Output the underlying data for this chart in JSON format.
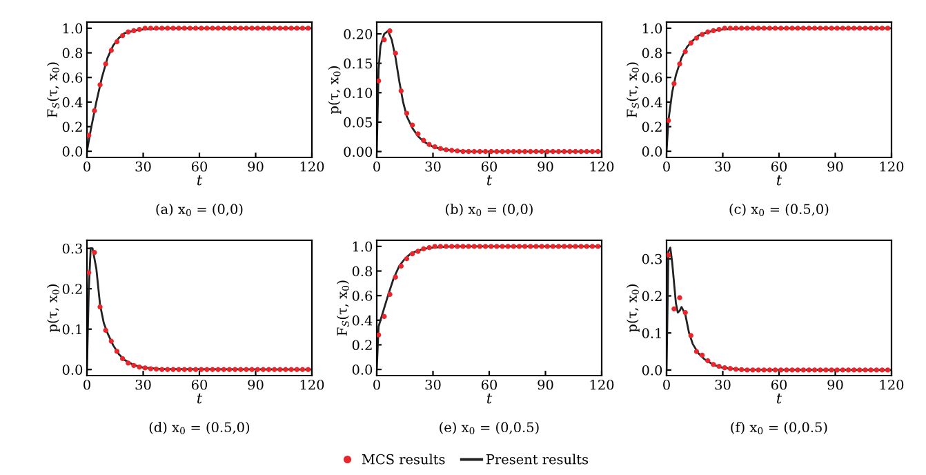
{
  "chart_data": [
    {
      "type": "line",
      "title": "(a) x$_{0}$ = (0,0)",
      "xlabel": "t",
      "ylabel": "F$_{S}$(τ, x$_{0}$)",
      "xlim": [
        0,
        120
      ],
      "xticks": [
        0,
        30,
        60,
        90,
        120
      ],
      "ylim": [
        -0.05,
        1.05
      ],
      "yticks": [
        {
          "value": 0,
          "label": "0.0"
        },
        {
          "value": 0.2,
          "label": "0.2"
        },
        {
          "value": 0.4,
          "label": "0.4"
        },
        {
          "value": 0.6,
          "label": "0.6"
        },
        {
          "value": 0.8,
          "label": "0.8"
        },
        {
          "value": 1,
          "label": "1.0"
        }
      ],
      "legend": "bottom",
      "series": [
        {
          "name": "MCS results",
          "type": "scatter",
          "marker": "circle",
          "color": "#e8262b",
          "x": [
            1,
            4,
            7,
            10,
            13,
            16,
            19,
            22,
            25,
            28,
            31,
            34,
            37,
            40,
            43,
            46,
            49,
            52,
            55,
            58,
            61,
            64,
            67,
            70,
            73,
            76,
            79,
            82,
            85,
            88,
            91,
            94,
            97,
            100,
            103,
            106,
            109,
            112,
            115,
            118
          ],
          "values": [
            0.13,
            0.33,
            0.54,
            0.71,
            0.82,
            0.89,
            0.94,
            0.97,
            0.98,
            0.99,
            1,
            1,
            1,
            1,
            1,
            1,
            1,
            1,
            1,
            1,
            1,
            1,
            1,
            1,
            1,
            1,
            1,
            1,
            1,
            1,
            1,
            1,
            1,
            1,
            1,
            1,
            1,
            1,
            1,
            1
          ]
        },
        {
          "name": "Present results",
          "color": "#222222",
          "x": [
            0,
            2,
            5,
            8,
            11,
            14,
            17,
            20,
            25,
            30,
            40,
            120
          ],
          "values": [
            0,
            0.17,
            0.4,
            0.6,
            0.76,
            0.86,
            0.92,
            0.96,
            0.98,
            0.99,
            1,
            1
          ]
        }
      ]
    },
    {
      "type": "line",
      "title": "(b) x$_{0}$ = (0,0)",
      "xlabel": "t",
      "ylabel": "p(τ, x$_{0}$)",
      "xlim": [
        0,
        120
      ],
      "xticks": [
        0,
        30,
        60,
        90,
        120
      ],
      "ylim": [
        -0.01,
        0.22
      ],
      "yticks": [
        {
          "value": 0,
          "label": "0.00"
        },
        {
          "value": 0.05,
          "label": "0.05"
        },
        {
          "value": 0.1,
          "label": "0.10"
        },
        {
          "value": 0.15,
          "label": "0.15"
        },
        {
          "value": 0.2,
          "label": "0.20"
        }
      ],
      "series": [
        {
          "type": "scatter",
          "marker": "circle",
          "color": "#e8262b",
          "x": [
            1,
            4,
            7,
            10,
            13,
            16,
            19,
            22,
            25,
            28,
            31,
            34,
            37,
            40,
            43,
            46,
            49,
            52,
            55,
            58,
            61,
            64,
            67,
            70,
            73,
            76,
            79,
            82,
            85,
            88,
            91,
            94,
            97,
            100,
            103,
            106,
            109,
            112,
            115,
            118
          ],
          "values": [
            0.12,
            0.19,
            0.205,
            0.167,
            0.103,
            0.065,
            0.045,
            0.03,
            0.019,
            0.012,
            0.008,
            0.005,
            0.003,
            0.002,
            0.001,
            0,
            0,
            0,
            0,
            0,
            0,
            0,
            0,
            0,
            0,
            0,
            0,
            0,
            0,
            0,
            0,
            0,
            0,
            0,
            0,
            0,
            0,
            0,
            0,
            0
          ]
        },
        {
          "color": "#222222",
          "x": [
            0,
            1,
            2,
            4,
            6,
            8,
            10,
            12,
            14,
            16,
            19,
            22,
            25,
            30,
            35,
            40,
            50,
            120
          ],
          "values": [
            0,
            0.14,
            0.18,
            0.2,
            0.205,
            0.19,
            0.16,
            0.12,
            0.085,
            0.06,
            0.04,
            0.026,
            0.017,
            0.008,
            0.004,
            0.002,
            0,
            0
          ]
        }
      ]
    },
    {
      "type": "line",
      "title": "(c) x$_{0}$ = (0.5,0)",
      "xlabel": "t",
      "ylabel": "F$_{S}$(τ, x$_{0}$)",
      "xlim": [
        0,
        120
      ],
      "xticks": [
        0,
        30,
        60,
        90,
        120
      ],
      "ylim": [
        -0.05,
        1.05
      ],
      "yticks": [
        {
          "value": 0,
          "label": "0.0"
        },
        {
          "value": 0.2,
          "label": "0.2"
        },
        {
          "value": 0.4,
          "label": "0.4"
        },
        {
          "value": 0.6,
          "label": "0.6"
        },
        {
          "value": 0.8,
          "label": "0.8"
        },
        {
          "value": 1,
          "label": "1.0"
        }
      ],
      "series": [
        {
          "type": "scatter",
          "marker": "circle",
          "color": "#e8262b",
          "x": [
            1,
            4,
            7,
            10,
            13,
            16,
            19,
            22,
            25,
            28,
            31,
            34,
            37,
            40,
            43,
            46,
            49,
            52,
            55,
            58,
            61,
            64,
            67,
            70,
            73,
            76,
            79,
            82,
            85,
            88,
            91,
            94,
            97,
            100,
            103,
            106,
            109,
            112,
            115,
            118
          ],
          "values": [
            0.25,
            0.55,
            0.71,
            0.81,
            0.88,
            0.92,
            0.95,
            0.97,
            0.98,
            0.99,
            1,
            1,
            1,
            1,
            1,
            1,
            1,
            1,
            1,
            1,
            1,
            1,
            1,
            1,
            1,
            1,
            1,
            1,
            1,
            1,
            1,
            1,
            1,
            1,
            1,
            1,
            1,
            1,
            1,
            1
          ]
        },
        {
          "color": "#222222",
          "x": [
            0,
            1,
            3,
            5,
            8,
            11,
            14,
            17,
            20,
            25,
            30,
            40,
            120
          ],
          "values": [
            0,
            0.25,
            0.48,
            0.62,
            0.76,
            0.85,
            0.9,
            0.94,
            0.96,
            0.98,
            0.99,
            1,
            1
          ]
        }
      ]
    },
    {
      "type": "line",
      "title": "(d) x$_{0}$ = (0.5,0)",
      "xlabel": "t",
      "ylabel": "p(τ, x$_{0}$)",
      "xlim": [
        0,
        120
      ],
      "xticks": [
        0,
        30,
        60,
        90,
        120
      ],
      "ylim": [
        -0.015,
        0.32
      ],
      "yticks": [
        {
          "value": 0,
          "label": "0.0"
        },
        {
          "value": 0.1,
          "label": "0.1"
        },
        {
          "value": 0.2,
          "label": "0.2"
        },
        {
          "value": 0.3,
          "label": "0.3"
        }
      ],
      "series": [
        {
          "type": "scatter",
          "marker": "circle",
          "color": "#e8262b",
          "x": [
            1,
            4,
            7,
            10,
            13,
            16,
            19,
            22,
            25,
            28,
            31,
            34,
            37,
            40,
            43,
            46,
            49,
            52,
            55,
            58,
            61,
            64,
            67,
            70,
            73,
            76,
            79,
            82,
            85,
            88,
            91,
            94,
            97,
            100,
            103,
            106,
            109,
            112,
            115,
            118
          ],
          "values": [
            0.24,
            0.29,
            0.155,
            0.097,
            0.07,
            0.045,
            0.027,
            0.016,
            0.01,
            0.006,
            0.004,
            0.002,
            0.001,
            0,
            0,
            0,
            0,
            0,
            0,
            0,
            0,
            0,
            0,
            0,
            0,
            0,
            0,
            0,
            0,
            0,
            0,
            0,
            0,
            0,
            0,
            0,
            0,
            0,
            0,
            0
          ]
        },
        {
          "color": "#222222",
          "x": [
            0,
            1,
            2,
            3,
            5,
            7,
            9,
            11,
            14,
            17,
            20,
            25,
            30,
            40,
            120
          ],
          "values": [
            0,
            0.2,
            0.3,
            0.3,
            0.25,
            0.16,
            0.115,
            0.09,
            0.06,
            0.038,
            0.024,
            0.011,
            0.005,
            0.001,
            0
          ]
        }
      ]
    },
    {
      "type": "line",
      "title": "(e) x$_{0}$ = (0,0.5)",
      "xlabel": "t",
      "ylabel": "F$_{S}$(τ, x$_{0}$)",
      "xlim": [
        0,
        120
      ],
      "xticks": [
        0,
        30,
        60,
        90,
        120
      ],
      "ylim": [
        -0.05,
        1.05
      ],
      "yticks": [
        {
          "value": 0,
          "label": "0.0"
        },
        {
          "value": 0.2,
          "label": "0.2"
        },
        {
          "value": 0.4,
          "label": "0.4"
        },
        {
          "value": 0.6,
          "label": "0.6"
        },
        {
          "value": 0.8,
          "label": "0.8"
        },
        {
          "value": 1,
          "label": "1.0"
        }
      ],
      "series": [
        {
          "type": "scatter",
          "marker": "circle",
          "color": "#e8262b",
          "x": [
            1,
            4,
            7,
            10,
            13,
            16,
            19,
            22,
            25,
            28,
            31,
            34,
            37,
            40,
            43,
            46,
            49,
            52,
            55,
            58,
            61,
            64,
            67,
            70,
            73,
            76,
            79,
            82,
            85,
            88,
            91,
            94,
            97,
            100,
            103,
            106,
            109,
            112,
            115,
            118
          ],
          "values": [
            0.28,
            0.43,
            0.61,
            0.75,
            0.84,
            0.9,
            0.94,
            0.96,
            0.98,
            0.99,
            1,
            1,
            1,
            1,
            1,
            1,
            1,
            1,
            1,
            1,
            1,
            1,
            1,
            1,
            1,
            1,
            1,
            1,
            1,
            1,
            1,
            1,
            1,
            1,
            1,
            1,
            1,
            1,
            1,
            1
          ]
        },
        {
          "color": "#222222",
          "x": [
            0,
            1,
            3,
            6,
            9,
            12,
            15,
            18,
            21,
            25,
            30,
            40,
            120
          ],
          "values": [
            0,
            0.35,
            0.45,
            0.6,
            0.74,
            0.84,
            0.9,
            0.94,
            0.96,
            0.98,
            0.99,
            1,
            1
          ]
        }
      ]
    },
    {
      "type": "line",
      "title": "(f) x$_{0}$ = (0,0.5)",
      "xlabel": "t",
      "ylabel": "p(τ, x$_{0}$)",
      "xlim": [
        0,
        120
      ],
      "xticks": [
        0,
        30,
        60,
        90,
        120
      ],
      "ylim": [
        -0.015,
        0.35
      ],
      "yticks": [
        {
          "value": 0,
          "label": "0.0"
        },
        {
          "value": 0.1,
          "label": "0.1"
        },
        {
          "value": 0.2,
          "label": "0.2"
        },
        {
          "value": 0.3,
          "label": "0.3"
        }
      ],
      "series": [
        {
          "type": "scatter",
          "marker": "circle",
          "color": "#e8262b",
          "x": [
            1,
            4,
            7,
            10,
            13,
            16,
            19,
            22,
            25,
            28,
            31,
            34,
            37,
            40,
            43,
            46,
            49,
            52,
            55,
            58,
            61,
            64,
            67,
            70,
            73,
            76,
            79,
            82,
            85,
            88,
            91,
            94,
            97,
            100,
            103,
            106,
            109,
            112,
            115,
            118
          ],
          "values": [
            0.31,
            0.165,
            0.195,
            0.155,
            0.093,
            0.05,
            0.04,
            0.025,
            0.015,
            0.01,
            0.006,
            0.004,
            0.002,
            0.001,
            0,
            0,
            0,
            0,
            0,
            0,
            0,
            0,
            0,
            0,
            0,
            0,
            0,
            0,
            0,
            0,
            0,
            0,
            0,
            0,
            0,
            0,
            0,
            0,
            0,
            0
          ]
        },
        {
          "color": "#222222",
          "x": [
            0,
            1,
            2,
            3,
            5,
            6,
            7,
            8,
            10,
            12,
            14,
            17,
            20,
            25,
            30,
            40,
            120
          ],
          "values": [
            0,
            0.32,
            0.33,
            0.29,
            0.18,
            0.155,
            0.16,
            0.17,
            0.15,
            0.1,
            0.07,
            0.045,
            0.03,
            0.014,
            0.006,
            0.001,
            0
          ]
        }
      ]
    }
  ]
}
